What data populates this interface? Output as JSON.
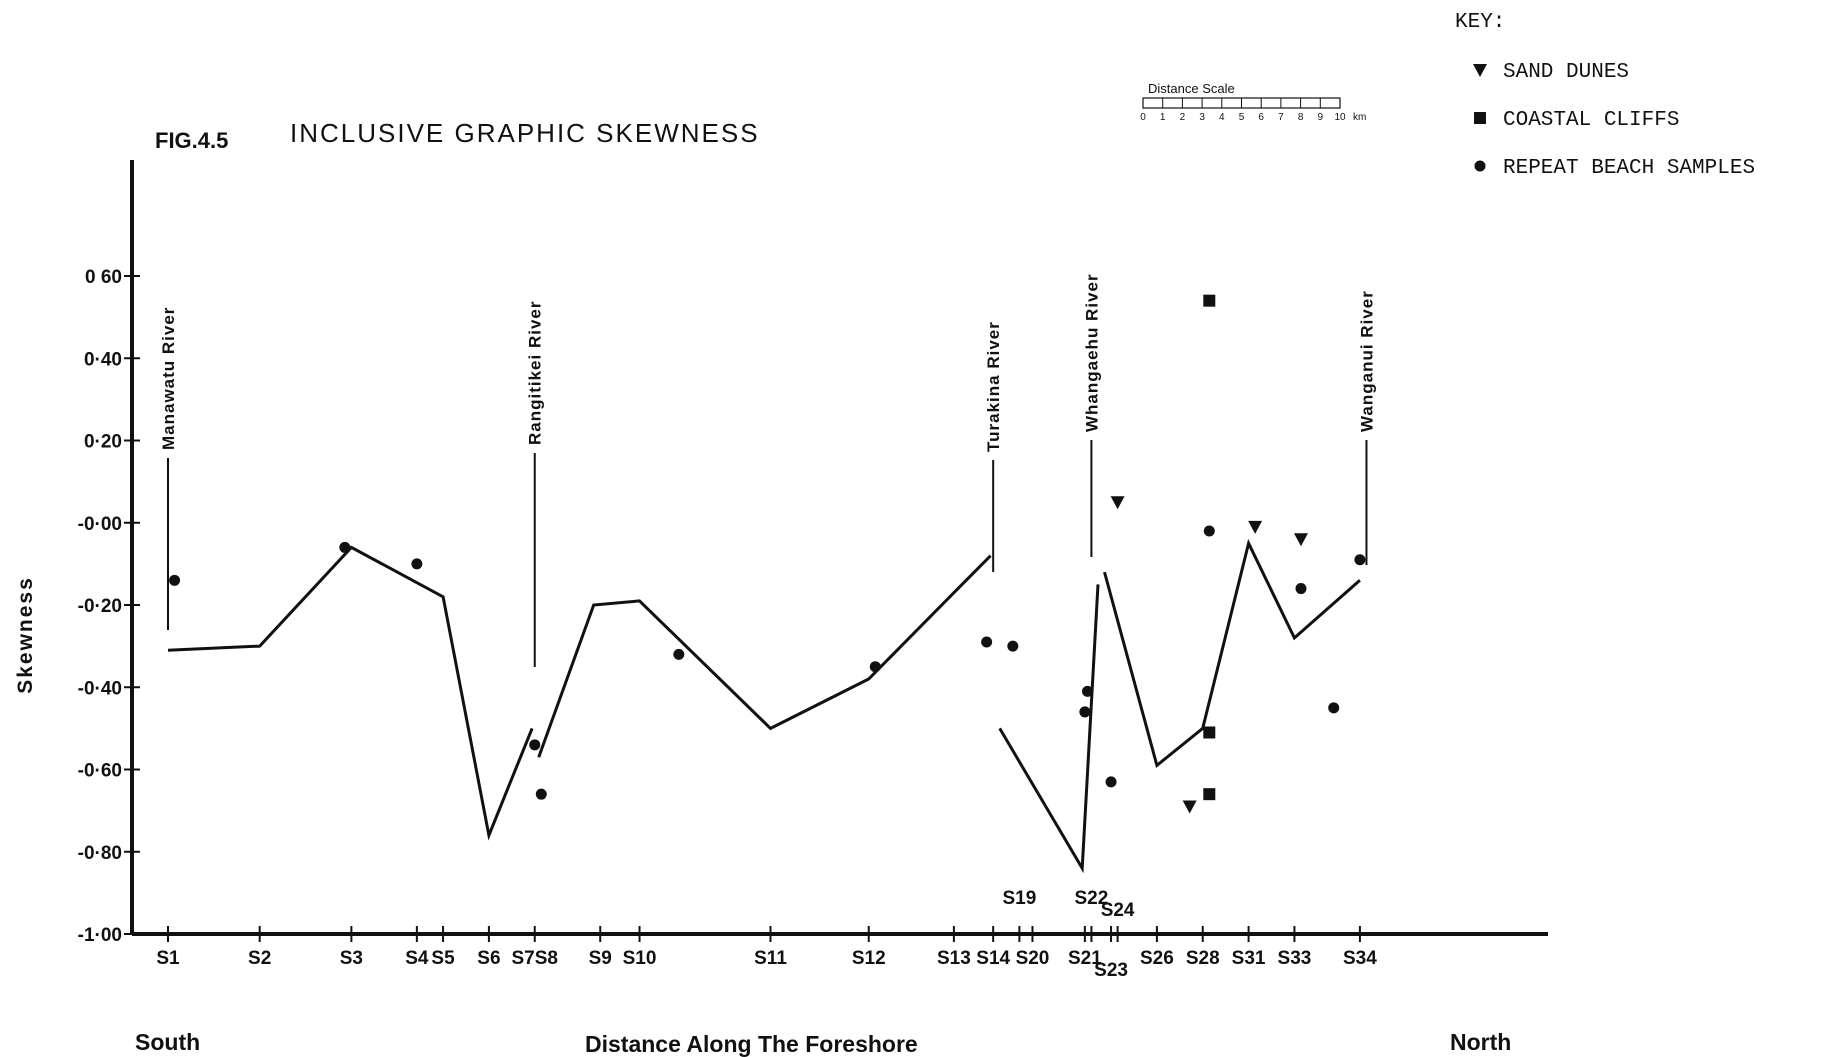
{
  "chart_data": {
    "type": "line",
    "figure_label": "FIG.4.5",
    "title": "INCLUSIVE GRAPHIC SKEWNESS",
    "ylabel": "Skewness",
    "xlabel": "Distance  Along The Foreshore",
    "x_left_label": "South",
    "x_right_label": "North",
    "ylim": [
      -1.0,
      0.7
    ],
    "y_ticks": [
      {
        "value": 0.6,
        "label": "0 60"
      },
      {
        "value": 0.4,
        "label": "0·40"
      },
      {
        "value": 0.2,
        "label": "0·20"
      },
      {
        "value": 0.0,
        "label": "-0·00"
      },
      {
        "value": -0.2,
        "label": "-0·20"
      },
      {
        "value": -0.4,
        "label": "-0·40"
      },
      {
        "value": -0.6,
        "label": "-0·60"
      },
      {
        "value": -0.8,
        "label": "-0·80"
      },
      {
        "value": -1.0,
        "label": "-1·00"
      }
    ],
    "x_unit": "km",
    "xlim": [
      0,
      102
    ],
    "stations": [
      {
        "label": "S1",
        "km": 0
      },
      {
        "label": "S2",
        "km": 7
      },
      {
        "label": "S3",
        "km": 14
      },
      {
        "label": "S4",
        "km": 19
      },
      {
        "label": "S5",
        "km": 21
      },
      {
        "label": "S6",
        "km": 24.5
      },
      {
        "label": "S7S8",
        "km": 28
      },
      {
        "label": "S9",
        "km": 33
      },
      {
        "label": "S10",
        "km": 36
      },
      {
        "label": "S11",
        "km": 46
      },
      {
        "label": "S12",
        "km": 53.5
      },
      {
        "label": "S13",
        "km": 60
      },
      {
        "label": "S14",
        "km": 63
      },
      {
        "label": "S19",
        "km": 65
      },
      {
        "label": "S20",
        "km": 66
      },
      {
        "label": "S21",
        "km": 70
      },
      {
        "label": "S22",
        "km": 70.5
      },
      {
        "label": "S24",
        "km": 72.5
      },
      {
        "label": "S23",
        "km": 72
      },
      {
        "label": "S26",
        "km": 75.5
      },
      {
        "label": "S28",
        "km": 79
      },
      {
        "label": "S31",
        "km": 82.5
      },
      {
        "label": "S33",
        "km": 86
      },
      {
        "label": "S34",
        "km": 91
      }
    ],
    "rivers": [
      {
        "name": "Manawatu River",
        "km": 0
      },
      {
        "name": "Rangitikei River",
        "km": 28
      },
      {
        "name": "Turakina River",
        "km": 63
      },
      {
        "name": "Whangaehu River",
        "km": 70.5
      },
      {
        "name": "Wanganui River",
        "km": 91.5
      }
    ],
    "series": [
      {
        "kind": "line",
        "segments": [
          [
            [
              0,
              -0.31
            ],
            [
              7,
              -0.3
            ],
            [
              14,
              -0.06
            ],
            [
              21,
              -0.18
            ],
            [
              24.5,
              -0.76
            ],
            [
              27.8,
              -0.5
            ]
          ],
          [
            [
              28.3,
              -0.57
            ],
            [
              32.5,
              -0.2
            ],
            [
              36,
              -0.19
            ],
            [
              46,
              -0.5
            ],
            [
              53.5,
              -0.38
            ],
            [
              60,
              -0.17
            ],
            [
              62.8,
              -0.08
            ]
          ],
          [
            [
              63.5,
              -0.5
            ],
            [
              69.8,
              -0.84
            ],
            [
              71,
              -0.15
            ]
          ],
          [
            [
              71.5,
              -0.12
            ],
            [
              75.5,
              -0.59
            ],
            [
              79,
              -0.5
            ],
            [
              82.5,
              -0.05
            ],
            [
              86,
              -0.28
            ],
            [
              91,
              -0.14
            ]
          ]
        ]
      },
      {
        "name": "SAND DUNES",
        "kind": "marker",
        "marker": "triangle-down",
        "points": [
          [
            72.5,
            0.05
          ],
          [
            78,
            -0.69
          ],
          [
            83,
            -0.01
          ],
          [
            86.5,
            -0.04
          ]
        ]
      },
      {
        "name": "COASTAL CLIFFS",
        "kind": "marker",
        "marker": "square",
        "points": [
          [
            79.5,
            0.54
          ],
          [
            79.5,
            -0.51
          ],
          [
            79.5,
            -0.66
          ]
        ]
      },
      {
        "name": "REPEAT BEACH SAMPLES",
        "kind": "marker",
        "marker": "circle",
        "points": [
          [
            0.5,
            -0.14
          ],
          [
            13.5,
            -0.06
          ],
          [
            19,
            -0.1
          ],
          [
            28,
            -0.54
          ],
          [
            28.5,
            -0.66
          ],
          [
            39,
            -0.32
          ],
          [
            54,
            -0.35
          ],
          [
            62.5,
            -0.29
          ],
          [
            64.5,
            -0.3
          ],
          [
            70,
            -0.46
          ],
          [
            70.2,
            -0.41
          ],
          [
            72,
            -0.63
          ],
          [
            79.5,
            -0.02
          ],
          [
            79.5,
            -0.51
          ],
          [
            86.5,
            -0.16
          ],
          [
            89,
            -0.45
          ],
          [
            91,
            -0.09
          ]
        ]
      }
    ],
    "legend": {
      "title": "KEY:",
      "placement": "top-right",
      "items": [
        {
          "label": "SAND DUNES",
          "marker": "triangle-down"
        },
        {
          "label": "COASTAL CLIFFS",
          "marker": "square"
        },
        {
          "label": "REPEAT BEACH SAMPLES",
          "marker": "circle"
        }
      ]
    },
    "distance_scale": {
      "title": "Distance   Scale",
      "ticks": [
        "0",
        "1",
        "2",
        "3",
        "4",
        "5",
        "6",
        "7",
        "8",
        "9",
        "10"
      ],
      "unit": "km"
    },
    "colors": {
      "ink": "#111111",
      "background": "#ffffff"
    }
  }
}
